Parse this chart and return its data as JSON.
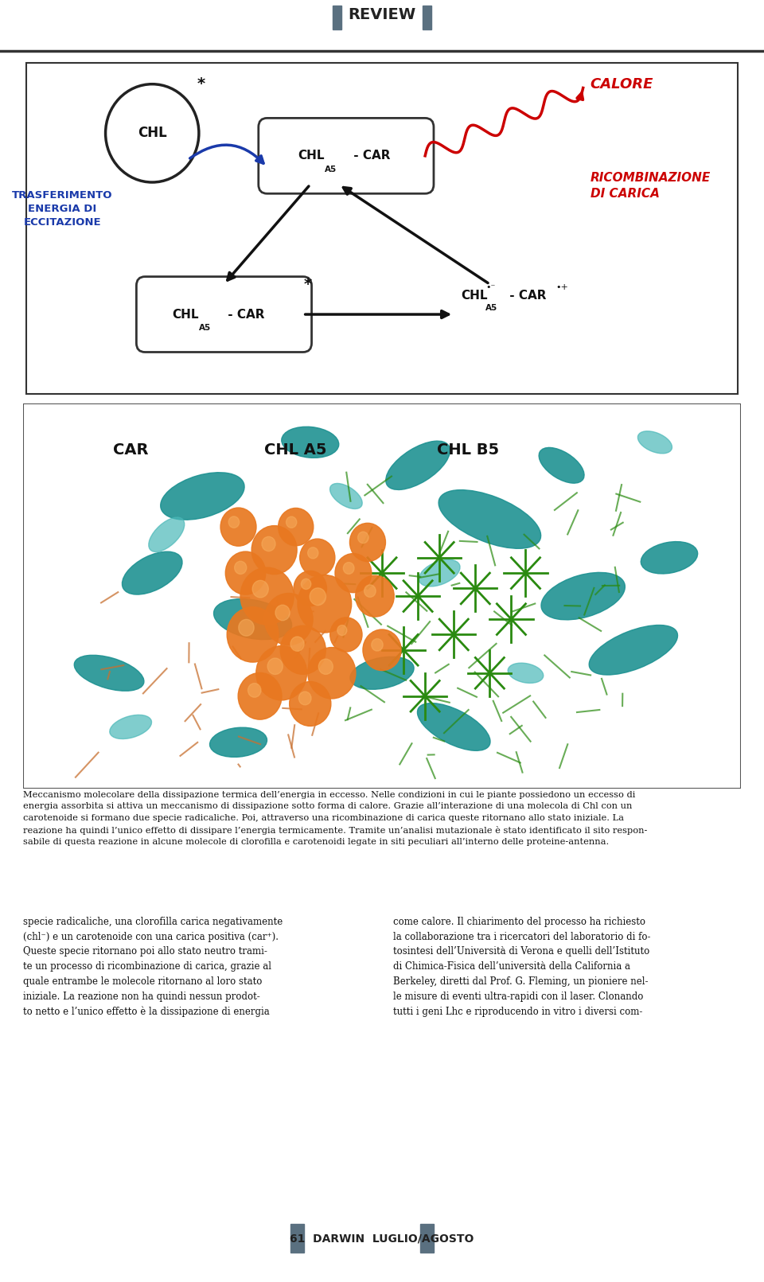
{
  "title_text": "REVIEW",
  "title_color": "#4a4a4a",
  "bg_color": "#ffffff",
  "page_number": "61",
  "magazine_name": "DARWIN",
  "issue": "LUGLIO/AGOSTO",
  "caption_text": "Meccanismo molecolare della dissipazione termica dell’energia in eccesso. Nelle condizioni in cui le piante possiedono un eccesso di\nenergia assorbita si attiva un meccanismo di dissipazione sotto forma di calore. Grazie all’interazione di una molecola di Chl con un\ncarotenoide si formano due specie radicaliche. Poi, attraverso una ricombinazione di carica queste ritornano allo stato iniziale. La\nreazione ha quindi l’unico effetto di dissipare l’energia termicamente. Tramite un’analisi mutazionale è stato identificato il sito respon-\nsabile di questa reazione in alcune molecole di clorofilla e carotenoidi legate in siti peculiari all’interno delle proteine-antenna.",
  "left_col_text": "specie radicaliche, una clorofilla carica negativamente\n(chl⁻) e un carotenoide con una carica positiva (car⁺).\nQueste specie ritornano poi allo stato neutro trami-\nte un processo di ricombinazione di carica, grazie al\nquale entrambe le molecole ritornano al loro stato\niniziale. La reazione non ha quindi nessun prodot-\nto netto e l’unico effetto è la dissipazione di energia",
  "right_col_text": "come calore. Il chiarimento del processo ha richiesto\nla collaborazione tra i ricercatori del laboratorio di fo-\ntosintesi dell’Università di Verona e quelli dell’Istituto\ndi Chimica-Fisica dell’università della California a\nBerkeley, diretti dal Prof. G. Fleming, un pioniere nel-\nle misure di eventi ultra-rapidi con il laser. Clonando\ntutti i geni Lhc e riproducendo in vitro i diversi com-",
  "diagram_box_color": "#222222",
  "blue_arrow_color": "#1a3aaa",
  "black_arrow_color": "#111111",
  "red_wavy_color": "#cc0000",
  "blue_label_color": "#1a3aaa",
  "red_label_color": "#cc0000",
  "calore_text": "CALORE",
  "ricombinazione_text": "RICOMBINAZIONE\nDI CARICA",
  "trasferimento_text": "TRASFERIMENTO\nENERGIA DI\nECCITAZIONE"
}
